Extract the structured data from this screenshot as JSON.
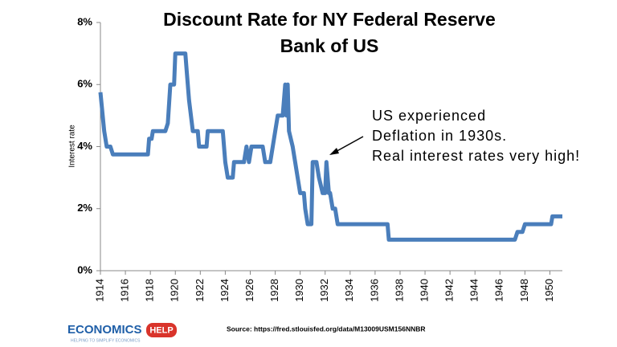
{
  "chart_data": {
    "type": "line",
    "title": [
      "Discount Rate for NY Federal Reserve",
      "Bank of US"
    ],
    "y_label": "Interest rate",
    "annotation": [
      "US experienced",
      "Deflation in 1930s.",
      "Real interest rates very high!"
    ],
    "source": "Source: https://fred.stlouisfed.org/data/M13009USM156NNBR",
    "logo": {
      "name": "ECONOMICS",
      "badge": "HELP",
      "tagline": "HELPING TO SIMPLIFY ECONOMICS"
    },
    "color": "#4a7ebb",
    "x": [
      1914.0,
      1914.3,
      1914.5,
      1914.8,
      1915.0,
      1917.8,
      1917.9,
      1918.1,
      1918.2,
      1919.2,
      1919.4,
      1919.6,
      1919.9,
      1920.0,
      1920.8,
      1920.9,
      1921.1,
      1921.4,
      1921.8,
      1921.9,
      1922.5,
      1922.6,
      1923.8,
      1924.0,
      1924.2,
      1924.6,
      1924.7,
      1925.5,
      1925.7,
      1925.9,
      1926.1,
      1927.0,
      1927.2,
      1927.6,
      1927.8,
      1928.0,
      1928.2,
      1928.6,
      1928.8,
      1928.9,
      1929.0,
      1929.1,
      1929.4,
      1929.6,
      1929.8,
      1930.0,
      1930.3,
      1930.4,
      1930.6,
      1930.9,
      1931.0,
      1931.3,
      1931.5,
      1931.8,
      1932.0,
      1932.1,
      1932.3,
      1932.4,
      1932.6,
      1932.8,
      1933.0,
      1937.0,
      1937.1,
      1947.2,
      1947.4,
      1947.8,
      1948.0,
      1950.1,
      1950.2,
      1951.0
    ],
    "values": [
      5.75,
      4.5,
      4.0,
      4.0,
      3.75,
      3.75,
      4.25,
      4.25,
      4.5,
      4.5,
      4.75,
      6.0,
      6.0,
      7.0,
      7.0,
      6.5,
      5.5,
      4.5,
      4.5,
      4.0,
      4.0,
      4.5,
      4.5,
      3.5,
      3.0,
      3.0,
      3.5,
      3.5,
      4.0,
      3.5,
      4.0,
      4.0,
      3.5,
      3.5,
      4.0,
      4.5,
      5.0,
      5.0,
      6.0,
      5.0,
      6.0,
      4.5,
      4.0,
      3.5,
      3.0,
      2.5,
      2.5,
      2.0,
      1.5,
      1.5,
      3.5,
      3.5,
      3.0,
      2.5,
      2.5,
      3.5,
      2.5,
      2.5,
      2.0,
      2.0,
      1.5,
      1.5,
      1.0,
      1.0,
      1.25,
      1.25,
      1.5,
      1.5,
      1.75,
      1.75
    ],
    "xlim": [
      1914,
      1951
    ],
    "ylim": [
      0,
      8
    ],
    "xticks": [
      1914,
      1916,
      1918,
      1920,
      1922,
      1924,
      1926,
      1928,
      1930,
      1932,
      1934,
      1936,
      1938,
      1940,
      1942,
      1944,
      1946,
      1948,
      1950
    ],
    "yticks": [
      {
        "value": 0,
        "label": "0%"
      },
      {
        "value": 2,
        "label": "2%"
      },
      {
        "value": 4,
        "label": "4%"
      },
      {
        "value": 6,
        "label": "6%"
      },
      {
        "value": 8,
        "label": "8%"
      }
    ],
    "grid": false
  }
}
